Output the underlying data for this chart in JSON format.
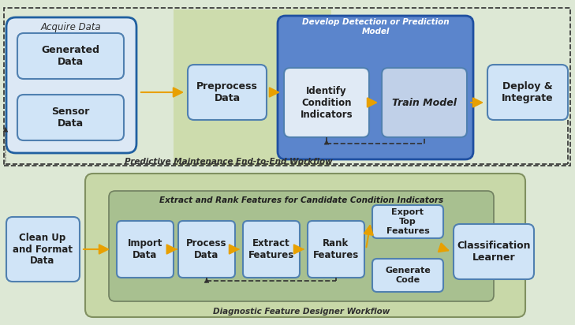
{
  "bg_color": "#dde8d5",
  "arrow_color": "#e8a000",
  "dashed_color": "#303030",
  "text_color": "#202020",
  "top": {
    "workflow_label": "Predictive Maintenance End-to-End Workflow",
    "acquire_bg": "#dce8f5",
    "acquire_border": "#2060a0",
    "acquire_label": "Acquire Data",
    "gen_data_label": "Generated\nData",
    "sensor_label": "Sensor\nData",
    "box_bg": "#d0e4f7",
    "box_border": "#5080b0",
    "preprocess_label": "Preprocess\nData",
    "green_overlay": "#c8d8a0",
    "develop_bg": "#5b85cc",
    "develop_border": "#2050a0",
    "develop_label": "Develop Detection or Prediction\nModel",
    "identify_bg": "#e0eaf5",
    "identify_label": "Identify\nCondition\nIndicators",
    "train_bg": "#c0d0e8",
    "train_label": "Train Model",
    "deploy_label": "Deploy &\nIntegrate"
  },
  "bottom": {
    "workflow_label": "Diagnostic Feature Designer Workflow",
    "outer_bg": "#c8d8a8",
    "outer_border": "#809060",
    "inner_bg": "#a8c090",
    "inner_border": "#708060",
    "inner_label": "Extract and Rank Features for Candidate Condition Indicators",
    "cleanup_label": "Clean Up\nand Format\nData",
    "box_bg": "#d0e4f7",
    "box_border": "#5080b0",
    "steps": [
      "Import\nData",
      "Process\nData",
      "Extract\nFeatures",
      "Rank\nFeatures"
    ],
    "export_label": "Export\nTop\nFeatures",
    "gencode_label": "Generate\nCode",
    "classlearn_label": "Classification\nLearner"
  }
}
